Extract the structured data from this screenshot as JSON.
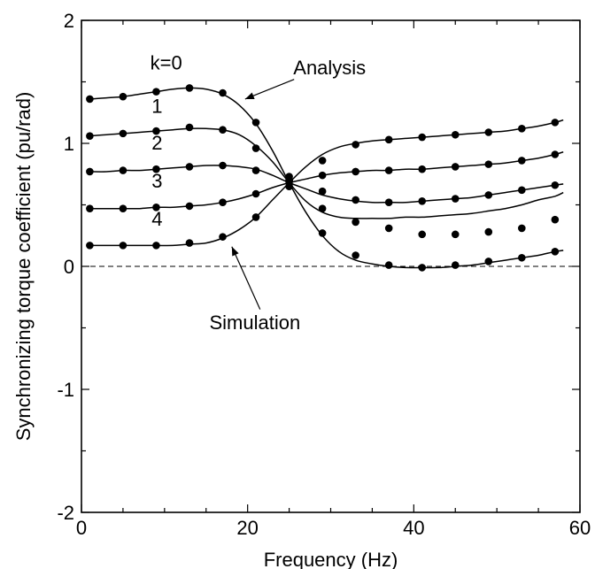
{
  "chart_data": {
    "type": "line",
    "title": "",
    "xlabel": "Frequency (Hz)",
    "ylabel": "Synchronizing torque coefficient (pu/rad)",
    "xlim": [
      0,
      60
    ],
    "ylim": [
      -2,
      2
    ],
    "xticks": [
      0,
      20,
      40,
      60
    ],
    "yticks": [
      -2,
      -1,
      0,
      1,
      2
    ],
    "xtick_labels": [
      "0",
      "20",
      "40",
      "60"
    ],
    "ytick_labels": [
      "-2",
      "-1",
      "0",
      "1",
      "2"
    ],
    "grid": false,
    "reference_line": {
      "y": 0,
      "style": "dashed"
    },
    "line_color": "#000000",
    "series": [
      {
        "name": "k=0",
        "curve": [
          [
            1,
            1.36
          ],
          [
            3,
            1.37
          ],
          [
            5,
            1.38
          ],
          [
            7,
            1.4
          ],
          [
            9,
            1.42
          ],
          [
            11,
            1.44
          ],
          [
            13,
            1.45
          ],
          [
            15,
            1.44
          ],
          [
            17,
            1.4
          ],
          [
            19,
            1.31
          ],
          [
            21,
            1.16
          ],
          [
            23,
            0.94
          ],
          [
            25,
            0.68
          ],
          [
            27,
            0.44
          ],
          [
            29,
            0.25
          ],
          [
            31,
            0.12
          ],
          [
            33,
            0.05
          ],
          [
            35,
            0.02
          ],
          [
            37,
            0.0
          ],
          [
            39,
            -0.01
          ],
          [
            41,
            -0.01
          ],
          [
            43,
            -0.01
          ],
          [
            45,
            0.0
          ],
          [
            47,
            0.01
          ],
          [
            49,
            0.03
          ],
          [
            51,
            0.05
          ],
          [
            53,
            0.07
          ],
          [
            55,
            0.09
          ],
          [
            57,
            0.12
          ],
          [
            58,
            0.13
          ]
        ],
        "simulation": [
          [
            1,
            1.36
          ],
          [
            5,
            1.38
          ],
          [
            9,
            1.42
          ],
          [
            13,
            1.45
          ],
          [
            17,
            1.41
          ],
          [
            21,
            1.17
          ],
          [
            25,
            0.65
          ],
          [
            29,
            0.27
          ],
          [
            33,
            0.09
          ],
          [
            37,
            0.01
          ],
          [
            41,
            -0.01
          ],
          [
            45,
            0.01
          ],
          [
            49,
            0.04
          ],
          [
            53,
            0.07
          ],
          [
            57,
            0.12
          ]
        ]
      },
      {
        "name": "1",
        "curve": [
          [
            1,
            1.06
          ],
          [
            3,
            1.07
          ],
          [
            5,
            1.08
          ],
          [
            7,
            1.09
          ],
          [
            9,
            1.1
          ],
          [
            11,
            1.11
          ],
          [
            13,
            1.12
          ],
          [
            15,
            1.12
          ],
          [
            17,
            1.11
          ],
          [
            19,
            1.07
          ],
          [
            21,
            0.98
          ],
          [
            23,
            0.85
          ],
          [
            25,
            0.68
          ],
          [
            27,
            0.53
          ],
          [
            29,
            0.44
          ],
          [
            31,
            0.4
          ],
          [
            33,
            0.39
          ],
          [
            35,
            0.39
          ],
          [
            37,
            0.39
          ],
          [
            39,
            0.4
          ],
          [
            41,
            0.4
          ],
          [
            43,
            0.41
          ],
          [
            45,
            0.42
          ],
          [
            47,
            0.43
          ],
          [
            49,
            0.45
          ],
          [
            51,
            0.47
          ],
          [
            53,
            0.5
          ],
          [
            55,
            0.54
          ],
          [
            57,
            0.57
          ],
          [
            58,
            0.6
          ]
        ],
        "simulation": [
          [
            1,
            1.06
          ],
          [
            5,
            1.08
          ],
          [
            9,
            1.1
          ],
          [
            13,
            1.13
          ],
          [
            17,
            1.11
          ],
          [
            21,
            0.96
          ],
          [
            25,
            0.69
          ],
          [
            29,
            0.47
          ],
          [
            33,
            0.36
          ],
          [
            37,
            0.31
          ],
          [
            41,
            0.26
          ],
          [
            45,
            0.26
          ],
          [
            49,
            0.28
          ],
          [
            53,
            0.31
          ],
          [
            57,
            0.38
          ]
        ]
      },
      {
        "name": "2",
        "curve": [
          [
            1,
            0.77
          ],
          [
            3,
            0.77
          ],
          [
            5,
            0.78
          ],
          [
            7,
            0.78
          ],
          [
            9,
            0.79
          ],
          [
            11,
            0.8
          ],
          [
            13,
            0.81
          ],
          [
            15,
            0.82
          ],
          [
            17,
            0.82
          ],
          [
            19,
            0.81
          ],
          [
            21,
            0.79
          ],
          [
            23,
            0.74
          ],
          [
            25,
            0.68
          ],
          [
            27,
            0.63
          ],
          [
            29,
            0.58
          ],
          [
            31,
            0.55
          ],
          [
            33,
            0.53
          ],
          [
            35,
            0.52
          ],
          [
            37,
            0.52
          ],
          [
            39,
            0.52
          ],
          [
            41,
            0.53
          ],
          [
            43,
            0.54
          ],
          [
            45,
            0.55
          ],
          [
            47,
            0.56
          ],
          [
            49,
            0.58
          ],
          [
            51,
            0.6
          ],
          [
            53,
            0.62
          ],
          [
            55,
            0.64
          ],
          [
            57,
            0.66
          ],
          [
            58,
            0.67
          ]
        ],
        "simulation": [
          [
            1,
            0.77
          ],
          [
            5,
            0.78
          ],
          [
            9,
            0.79
          ],
          [
            13,
            0.81
          ],
          [
            17,
            0.82
          ],
          [
            21,
            0.78
          ],
          [
            25,
            0.7
          ],
          [
            29,
            0.61
          ],
          [
            33,
            0.54
          ],
          [
            37,
            0.52
          ],
          [
            41,
            0.53
          ],
          [
            45,
            0.55
          ],
          [
            49,
            0.58
          ],
          [
            53,
            0.62
          ],
          [
            57,
            0.66
          ]
        ]
      },
      {
        "name": "3",
        "curve": [
          [
            1,
            0.47
          ],
          [
            3,
            0.47
          ],
          [
            5,
            0.47
          ],
          [
            7,
            0.47
          ],
          [
            9,
            0.48
          ],
          [
            11,
            0.48
          ],
          [
            13,
            0.49
          ],
          [
            15,
            0.5
          ],
          [
            17,
            0.52
          ],
          [
            19,
            0.55
          ],
          [
            21,
            0.59
          ],
          [
            23,
            0.64
          ],
          [
            25,
            0.68
          ],
          [
            27,
            0.71
          ],
          [
            29,
            0.74
          ],
          [
            31,
            0.76
          ],
          [
            33,
            0.77
          ],
          [
            35,
            0.78
          ],
          [
            37,
            0.78
          ],
          [
            39,
            0.79
          ],
          [
            41,
            0.79
          ],
          [
            43,
            0.8
          ],
          [
            45,
            0.81
          ],
          [
            47,
            0.82
          ],
          [
            49,
            0.83
          ],
          [
            51,
            0.84
          ],
          [
            53,
            0.86
          ],
          [
            55,
            0.88
          ],
          [
            57,
            0.91
          ],
          [
            58,
            0.93
          ]
        ],
        "simulation": [
          [
            1,
            0.47
          ],
          [
            5,
            0.47
          ],
          [
            9,
            0.48
          ],
          [
            13,
            0.49
          ],
          [
            17,
            0.52
          ],
          [
            21,
            0.59
          ],
          [
            25,
            0.7
          ],
          [
            29,
            0.74
          ],
          [
            33,
            0.77
          ],
          [
            37,
            0.78
          ],
          [
            41,
            0.79
          ],
          [
            45,
            0.81
          ],
          [
            49,
            0.83
          ],
          [
            53,
            0.86
          ],
          [
            57,
            0.91
          ]
        ]
      },
      {
        "name": "4",
        "curve": [
          [
            1,
            0.17
          ],
          [
            3,
            0.17
          ],
          [
            5,
            0.17
          ],
          [
            7,
            0.17
          ],
          [
            9,
            0.17
          ],
          [
            11,
            0.17
          ],
          [
            13,
            0.18
          ],
          [
            15,
            0.19
          ],
          [
            17,
            0.23
          ],
          [
            19,
            0.3
          ],
          [
            21,
            0.4
          ],
          [
            23,
            0.54
          ],
          [
            25,
            0.68
          ],
          [
            27,
            0.81
          ],
          [
            29,
            0.91
          ],
          [
            31,
            0.97
          ],
          [
            33,
            1.0
          ],
          [
            35,
            1.02
          ],
          [
            37,
            1.03
          ],
          [
            39,
            1.04
          ],
          [
            41,
            1.05
          ],
          [
            43,
            1.06
          ],
          [
            45,
            1.07
          ],
          [
            47,
            1.08
          ],
          [
            49,
            1.09
          ],
          [
            51,
            1.1
          ],
          [
            53,
            1.12
          ],
          [
            55,
            1.14
          ],
          [
            57,
            1.17
          ],
          [
            58,
            1.19
          ]
        ],
        "simulation": [
          [
            1,
            0.17
          ],
          [
            5,
            0.17
          ],
          [
            9,
            0.17
          ],
          [
            13,
            0.19
          ],
          [
            17,
            0.24
          ],
          [
            21,
            0.4
          ],
          [
            25,
            0.73
          ],
          [
            29,
            0.86
          ],
          [
            33,
            0.99
          ],
          [
            37,
            1.03
          ],
          [
            41,
            1.05
          ],
          [
            45,
            1.07
          ],
          [
            49,
            1.09
          ],
          [
            53,
            1.12
          ],
          [
            57,
            1.17
          ]
        ]
      }
    ],
    "annotations": [
      {
        "text": "Analysis",
        "points_to": [
          17,
          1.41
        ]
      },
      {
        "text": "Simulation",
        "points_to": [
          17,
          0.24
        ]
      }
    ]
  }
}
